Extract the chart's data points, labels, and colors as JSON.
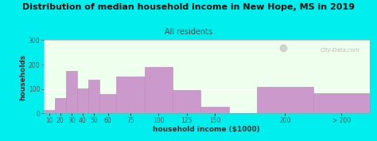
{
  "title": "Distribution of median household income in New Hope, MS in 2019",
  "subtitle": "All residents",
  "xlabel": "household income ($1000)",
  "ylabel": "households",
  "bar_heights": [
    15,
    62,
    173,
    103,
    140,
    80,
    152,
    190,
    95,
    28,
    108,
    82
  ],
  "bar_widths": [
    10,
    10,
    10,
    10,
    10,
    15,
    25,
    25,
    25,
    25,
    50,
    50
  ],
  "bar_lefts": [
    10,
    20,
    30,
    40,
    50,
    60,
    75,
    100,
    125,
    150,
    200,
    250
  ],
  "bar_color": "#cc99cc",
  "bar_edgecolor": "#bb88bb",
  "bg_outer": "#00eeee",
  "bg_plot": "#eeffee",
  "ylim": [
    0,
    300
  ],
  "yticks": [
    0,
    100,
    200,
    300
  ],
  "xtick_labels": [
    "10",
    "20",
    "30",
    "40",
    "50",
    "60",
    "75",
    "100",
    "125",
    "150",
    "200",
    "> 200"
  ],
  "xtick_positions": [
    15,
    25,
    35,
    45,
    55,
    67.5,
    87.5,
    112.5,
    137.5,
    162.5,
    225,
    275
  ],
  "title_fontsize": 8.0,
  "subtitle_fontsize": 7.0,
  "label_fontsize": 6.5,
  "tick_fontsize": 5.5,
  "watermark_text": "City-Data.com",
  "xlim": [
    10,
    300
  ]
}
